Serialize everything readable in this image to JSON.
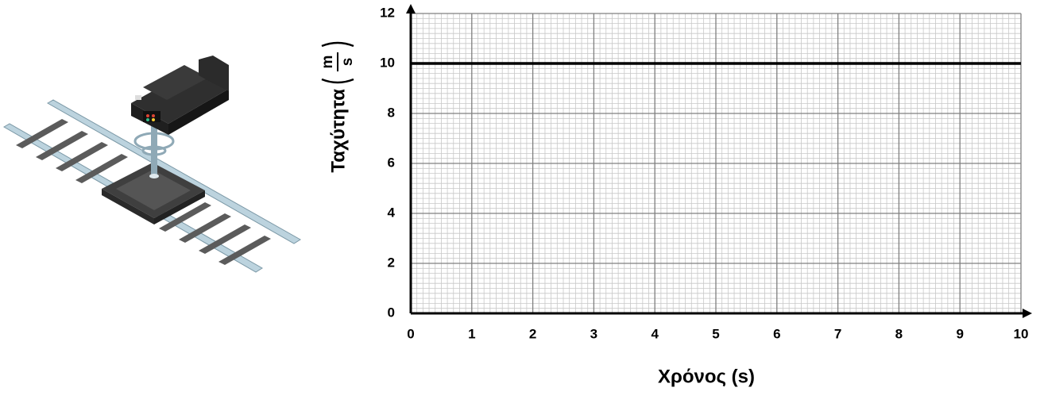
{
  "chart_data": {
    "type": "line",
    "ylabel": {
      "text": "Ταχύτητα",
      "unit_numerator": "m",
      "unit_denominator": "s"
    },
    "xlabel": "Χρόνος (s)",
    "xlim": [
      0,
      10
    ],
    "xticks": [
      0,
      1,
      2,
      3,
      4,
      5,
      6,
      7,
      8,
      9,
      10
    ],
    "ylim": [
      0,
      12
    ],
    "yticks": [
      0,
      2,
      4,
      6,
      8,
      10,
      12
    ],
    "grid": true,
    "series": [
      {
        "color": "#000000",
        "x": [
          0,
          10
        ],
        "values": [
          10,
          10
        ]
      }
    ]
  }
}
